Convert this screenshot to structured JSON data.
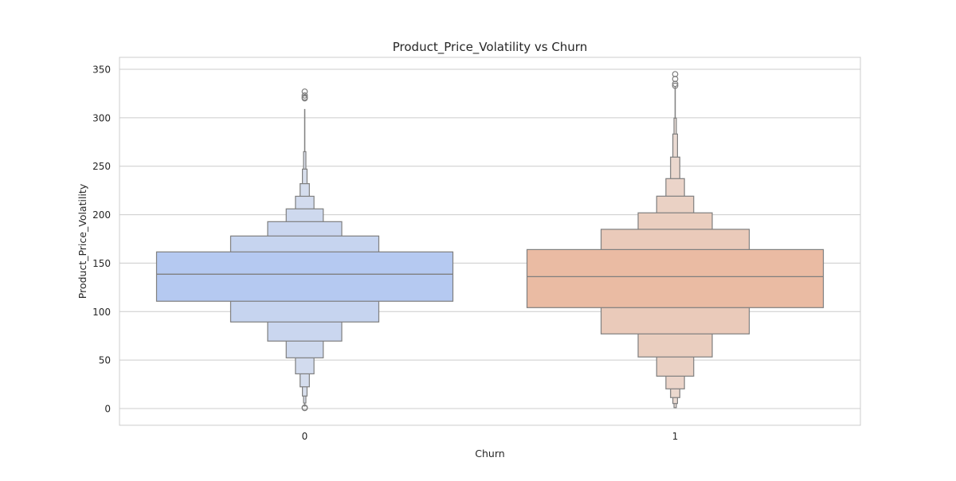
{
  "chart_data": {
    "type": "boxen",
    "title": "Product_Price_Volatility vs Churn",
    "xlabel": "Churn",
    "ylabel": "Product_Price_Volatility",
    "ylim": [
      -17,
      365
    ],
    "yticks": [
      0,
      50,
      100,
      150,
      200,
      250,
      300,
      350
    ],
    "grid": true,
    "categories": [
      "0",
      "1"
    ],
    "colors": [
      "#b5c9f1",
      "#eabba3"
    ],
    "groups": [
      {
        "category": "0",
        "median": 138.6,
        "levels": [
          [
            110.7,
            161.6
          ],
          [
            89.3,
            178
          ],
          [
            69.6,
            192.8
          ],
          [
            52.3,
            206
          ],
          [
            35.8,
            219
          ],
          [
            22.4,
            232
          ],
          [
            12.9,
            247
          ],
          [
            5.7,
            265
          ]
        ],
        "whisker": [
          2,
          309
        ],
        "outliers": [
          327,
          323,
          321,
          320,
          1,
          0.5
        ]
      },
      {
        "category": "1",
        "median": 136.1,
        "levels": [
          [
            104.1,
            164
          ],
          [
            77,
            184.9
          ],
          [
            53.2,
            201.9
          ],
          [
            33.4,
            219.1
          ],
          [
            20.3,
            237.2
          ],
          [
            11.3,
            259.4
          ],
          [
            5.2,
            283.2
          ],
          [
            1,
            299.6
          ]
        ],
        "whisker": [
          0.5,
          332.5
        ],
        "outliers": [
          345,
          340,
          335,
          333
        ]
      }
    ]
  }
}
